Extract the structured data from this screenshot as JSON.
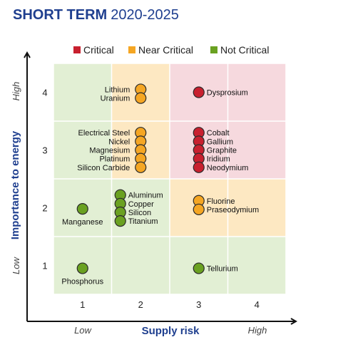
{
  "chart_data": {
    "type": "scatter",
    "title": "SHORT TERM",
    "subtitle": "2020-2025",
    "xlabel": "Supply risk",
    "ylabel": "Importance to energy",
    "x_low_label": "Low",
    "x_high_label": "High",
    "y_low_label": "Low",
    "y_high_label": "High",
    "x_ticks": [
      "1",
      "2",
      "3",
      "4"
    ],
    "y_ticks": [
      "1",
      "2",
      "3",
      "4"
    ],
    "xlim": [
      0.5,
      4.5
    ],
    "ylim": [
      0.5,
      4.5
    ],
    "grid": true,
    "legend_position": "top",
    "legend": [
      {
        "name": "Critical",
        "color": "#c8202f"
      },
      {
        "name": "Near Critical",
        "color": "#f5a623"
      },
      {
        "name": "Not Critical",
        "color": "#6aa121"
      }
    ],
    "zone_colors": {
      "critical": "#f6d9de",
      "near": "#fde8c2",
      "not": "#e2efd4"
    },
    "series": [
      {
        "name": "Critical",
        "color": "#c8202f",
        "points": [
          {
            "label": "Dysprosium",
            "x": 3.0,
            "y": 4.0
          },
          {
            "label": "Cobalt",
            "x": 3.0,
            "y": 3.3
          },
          {
            "label": "Gallium",
            "x": 3.0,
            "y": 3.15
          },
          {
            "label": "Graphite",
            "x": 3.0,
            "y": 3.0
          },
          {
            "label": "Iridium",
            "x": 3.0,
            "y": 2.85
          },
          {
            "label": "Neodymium",
            "x": 3.0,
            "y": 2.7
          }
        ]
      },
      {
        "name": "Near Critical",
        "color": "#f5a623",
        "points": [
          {
            "label": "Lithium",
            "x": 2.0,
            "y": 4.05
          },
          {
            "label": "Uranium",
            "x": 2.0,
            "y": 3.9
          },
          {
            "label": "Electrical Steel",
            "x": 2.0,
            "y": 3.3
          },
          {
            "label": "Nickel",
            "x": 2.0,
            "y": 3.15
          },
          {
            "label": "Magnesium",
            "x": 2.0,
            "y": 3.0
          },
          {
            "label": "Platinum",
            "x": 2.0,
            "y": 2.85
          },
          {
            "label": "Silicon Carbide",
            "x": 2.0,
            "y": 2.7
          },
          {
            "label": "Fluorine",
            "x": 3.0,
            "y": 2.12
          },
          {
            "label": "Praseodymium",
            "x": 3.0,
            "y": 1.97
          }
        ]
      },
      {
        "name": "Not Critical",
        "color": "#6aa121",
        "points": [
          {
            "label": "Aluminum",
            "x": 1.65,
            "y": 2.22
          },
          {
            "label": "Copper",
            "x": 1.65,
            "y": 2.07
          },
          {
            "label": "Silicon",
            "x": 1.65,
            "y": 1.92
          },
          {
            "label": "Titanium",
            "x": 1.65,
            "y": 1.77
          },
          {
            "label": "Manganese",
            "x": 1.0,
            "y": 1.98
          },
          {
            "label": "Phosphorus",
            "x": 1.0,
            "y": 0.95
          },
          {
            "label": "Tellurium",
            "x": 3.0,
            "y": 0.95
          }
        ]
      }
    ]
  }
}
